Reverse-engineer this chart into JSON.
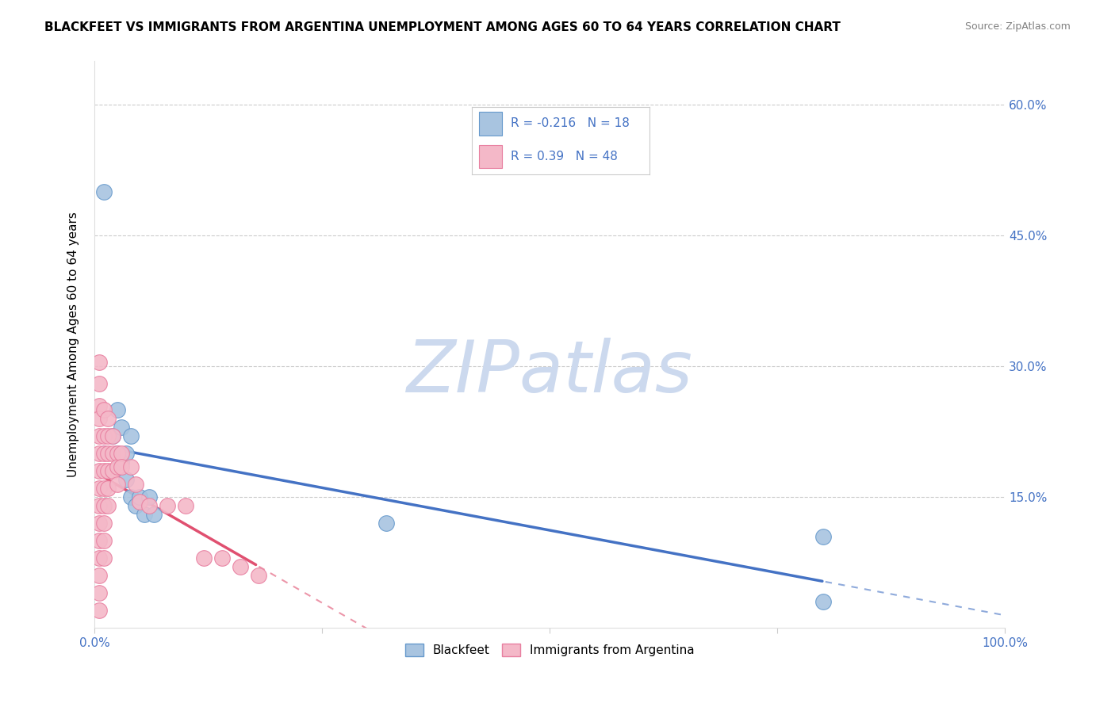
{
  "title": "BLACKFEET VS IMMIGRANTS FROM ARGENTINA UNEMPLOYMENT AMONG AGES 60 TO 64 YEARS CORRELATION CHART",
  "source": "Source: ZipAtlas.com",
  "ylabel": "Unemployment Among Ages 60 to 64 years",
  "xlabel": "",
  "watermark": "ZIPatlas",
  "xlim": [
    0,
    1.0
  ],
  "ylim": [
    0,
    0.65
  ],
  "yticks": [
    0,
    0.15,
    0.3,
    0.45,
    0.6
  ],
  "ytick_labels": [
    "",
    "15.0%",
    "30.0%",
    "45.0%",
    "60.0%"
  ],
  "xticks": [
    0,
    0.25,
    0.5,
    0.75,
    1.0
  ],
  "xtick_labels": [
    "0.0%",
    "",
    "",
    "",
    "100.0%"
  ],
  "series": [
    {
      "name": "Blackfeet",
      "color": "#a8c4e0",
      "edge_color": "#6699cc",
      "R": -0.216,
      "N": 18,
      "trend_color": "#4472c4",
      "points": [
        [
          0.01,
          0.5
        ],
        [
          0.02,
          0.22
        ],
        [
          0.025,
          0.25
        ],
        [
          0.025,
          0.2
        ],
        [
          0.03,
          0.23
        ],
        [
          0.03,
          0.19
        ],
        [
          0.035,
          0.2
        ],
        [
          0.035,
          0.17
        ],
        [
          0.04,
          0.22
        ],
        [
          0.04,
          0.15
        ],
        [
          0.045,
          0.14
        ],
        [
          0.05,
          0.15
        ],
        [
          0.055,
          0.13
        ],
        [
          0.06,
          0.15
        ],
        [
          0.065,
          0.13
        ],
        [
          0.32,
          0.12
        ],
        [
          0.8,
          0.105
        ],
        [
          0.8,
          0.03
        ]
      ]
    },
    {
      "name": "Immigrants from Argentina",
      "color": "#f4b8c8",
      "edge_color": "#e87fa0",
      "R": 0.39,
      "N": 48,
      "trend_color": "#e05070",
      "points": [
        [
          0.005,
          0.305
        ],
        [
          0.005,
          0.28
        ],
        [
          0.005,
          0.255
        ],
        [
          0.005,
          0.24
        ],
        [
          0.005,
          0.22
        ],
        [
          0.005,
          0.2
        ],
        [
          0.005,
          0.18
        ],
        [
          0.005,
          0.16
        ],
        [
          0.005,
          0.14
        ],
        [
          0.005,
          0.12
        ],
        [
          0.005,
          0.1
        ],
        [
          0.005,
          0.08
        ],
        [
          0.005,
          0.06
        ],
        [
          0.005,
          0.04
        ],
        [
          0.005,
          0.02
        ],
        [
          0.01,
          0.25
        ],
        [
          0.01,
          0.22
        ],
        [
          0.01,
          0.2
        ],
        [
          0.01,
          0.18
        ],
        [
          0.01,
          0.16
        ],
        [
          0.01,
          0.14
        ],
        [
          0.01,
          0.12
        ],
        [
          0.01,
          0.1
        ],
        [
          0.01,
          0.08
        ],
        [
          0.015,
          0.24
        ],
        [
          0.015,
          0.22
        ],
        [
          0.015,
          0.2
        ],
        [
          0.015,
          0.18
        ],
        [
          0.015,
          0.16
        ],
        [
          0.015,
          0.14
        ],
        [
          0.02,
          0.22
        ],
        [
          0.02,
          0.2
        ],
        [
          0.02,
          0.18
        ],
        [
          0.025,
          0.2
        ],
        [
          0.025,
          0.185
        ],
        [
          0.025,
          0.165
        ],
        [
          0.03,
          0.2
        ],
        [
          0.03,
          0.185
        ],
        [
          0.04,
          0.185
        ],
        [
          0.045,
          0.165
        ],
        [
          0.05,
          0.145
        ],
        [
          0.06,
          0.14
        ],
        [
          0.08,
          0.14
        ],
        [
          0.1,
          0.14
        ],
        [
          0.12,
          0.08
        ],
        [
          0.14,
          0.08
        ],
        [
          0.16,
          0.07
        ],
        [
          0.18,
          0.06
        ]
      ]
    }
  ],
  "background_color": "#ffffff",
  "grid_color": "#cccccc",
  "axis_color": "#4472c4",
  "title_fontsize": 11,
  "source_fontsize": 9,
  "watermark_color": "#ccd9ee",
  "watermark_fontsize": 65,
  "legend_R_color": "#4472c4"
}
